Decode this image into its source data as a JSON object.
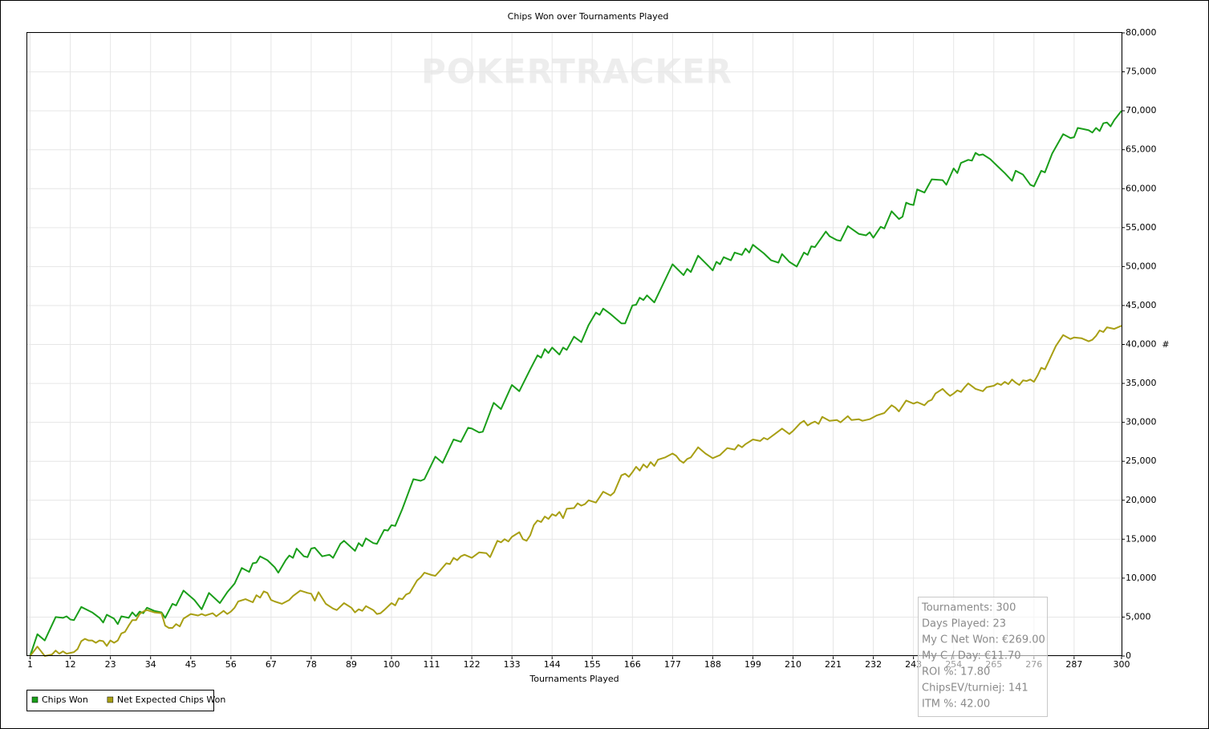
{
  "chart_data": {
    "type": "line",
    "title": "Chips Won over Tournaments Played",
    "watermark": "POKERTRACKER",
    "x_label": "Tournaments Played",
    "y_label": "#",
    "xlim": [
      0,
      300
    ],
    "ylim": [
      0,
      80000
    ],
    "xticks": [
      1,
      12,
      23,
      34,
      45,
      56,
      67,
      78,
      89,
      100,
      111,
      122,
      133,
      144,
      155,
      166,
      177,
      188,
      199,
      210,
      221,
      232,
      243,
      254,
      265,
      276,
      287,
      300
    ],
    "yticks": [
      0,
      {
        "value": 5000,
        "label": "5,000"
      },
      {
        "value": 10000,
        "label": "10,000"
      },
      {
        "value": 15000,
        "label": "15,000"
      },
      {
        "value": 20000,
        "label": "20,000"
      },
      {
        "value": 25000,
        "label": "25,000"
      },
      {
        "value": 30000,
        "label": "30,000"
      },
      {
        "value": 35000,
        "label": "35,000"
      },
      {
        "value": 40000,
        "label": "40,000"
      },
      {
        "value": 45000,
        "label": "45,000"
      },
      {
        "value": 50000,
        "label": "50,000"
      },
      {
        "value": 55000,
        "label": "55,000"
      },
      {
        "value": 60000,
        "label": "60,000"
      },
      {
        "value": 65000,
        "label": "65,000"
      },
      {
        "value": 70000,
        "label": "70,000"
      },
      {
        "value": 75000,
        "label": "75,000"
      },
      {
        "value": 80000,
        "label": "80,000"
      }
    ],
    "grid": true,
    "legend": "bottom-left",
    "series": [
      {
        "name": "Chips Won",
        "color": "#1a9e1a",
        "x": [
          1,
          3,
          5,
          8,
          10,
          11,
          12,
          13,
          15,
          18,
          20,
          21,
          22,
          24,
          25,
          26,
          28,
          29,
          30,
          31,
          32,
          33,
          35,
          37,
          38,
          40,
          41,
          43,
          46,
          48,
          50,
          53,
          55,
          57,
          59,
          61,
          62,
          63,
          64,
          66,
          68,
          69,
          71,
          72,
          73,
          74,
          76,
          77,
          78,
          79,
          81,
          83,
          84,
          86,
          87,
          90,
          91,
          92,
          93,
          95,
          96,
          98,
          99,
          100,
          101,
          103,
          106,
          108,
          109,
          112,
          114,
          117,
          119,
          121,
          122,
          124,
          125,
          128,
          130,
          133,
          135,
          138,
          140,
          141,
          142,
          143,
          144,
          146,
          147,
          148,
          150,
          152,
          154,
          156,
          157,
          158,
          160,
          163,
          164,
          166,
          167,
          168,
          169,
          170,
          172,
          177,
          180,
          181,
          182,
          184,
          187,
          188,
          189,
          190,
          191,
          192,
          193,
          194,
          196,
          197,
          198,
          199,
          202,
          204,
          206,
          207,
          209,
          211,
          213,
          214,
          215,
          216,
          219,
          220,
          222,
          223,
          225,
          228,
          230,
          231,
          232,
          234,
          235,
          237,
          239,
          240,
          241,
          242,
          243,
          244,
          246,
          248,
          251,
          252,
          254,
          255,
          256,
          258,
          259,
          260,
          261,
          262,
          264,
          266,
          268,
          270,
          271,
          273,
          275,
          276,
          278,
          279,
          281,
          284,
          286,
          287,
          288,
          290,
          291,
          292,
          293,
          294,
          295,
          296,
          297,
          298,
          300
        ],
        "values": [
          0,
          2800,
          2000,
          5000,
          4900,
          5100,
          4700,
          4600,
          6300,
          5600,
          4900,
          4300,
          5300,
          4800,
          4100,
          5100,
          4900,
          5600,
          5100,
          5700,
          5500,
          6200,
          5800,
          5600,
          4900,
          6700,
          6500,
          8400,
          7200,
          6000,
          8100,
          6800,
          8200,
          9300,
          11300,
          10800,
          11900,
          12000,
          12800,
          12300,
          11400,
          10700,
          12300,
          12900,
          12600,
          13800,
          12800,
          12700,
          13800,
          13900,
          12800,
          13000,
          12600,
          14400,
          14800,
          13500,
          14500,
          14100,
          15100,
          14500,
          14400,
          16200,
          16100,
          16800,
          16700,
          18900,
          22700,
          22500,
          22700,
          25600,
          24800,
          27800,
          27500,
          29300,
          29200,
          28700,
          28800,
          32500,
          31700,
          34800,
          34000,
          36800,
          38600,
          38300,
          39400,
          38900,
          39600,
          38700,
          39600,
          39300,
          41000,
          40300,
          42500,
          44100,
          43800,
          44600,
          43900,
          42700,
          42700,
          45000,
          45100,
          46000,
          45700,
          46300,
          45400,
          50300,
          48900,
          49700,
          49300,
          51400,
          50000,
          49500,
          50600,
          50300,
          51200,
          51000,
          50800,
          51800,
          51500,
          52300,
          51800,
          52800,
          51700,
          50800,
          50500,
          51600,
          50600,
          50000,
          51800,
          51500,
          52600,
          52500,
          54500,
          53900,
          53400,
          53300,
          55200,
          54200,
          54000,
          54400,
          53700,
          55100,
          54900,
          57100,
          56100,
          56400,
          58200,
          58000,
          57900,
          59900,
          59500,
          61200,
          61100,
          60500,
          62600,
          62000,
          63300,
          63700,
          63600,
          64600,
          64300,
          64400,
          63800,
          62900,
          62000,
          61000,
          62300,
          61800,
          60500,
          60300,
          62300,
          62100,
          64500,
          67000,
          66500,
          66600,
          67800,
          67600,
          67500,
          67200,
          67800,
          67400,
          68400,
          68500,
          68000,
          68800,
          70000
        ]
      },
      {
        "name": "Net Expected Chips Won",
        "color": "#a89f14",
        "x": [
          1,
          3,
          5,
          7,
          8,
          9,
          10,
          11,
          12,
          13,
          14,
          15,
          16,
          17,
          18,
          19,
          20,
          21,
          22,
          23,
          24,
          25,
          26,
          27,
          28,
          29,
          30,
          31,
          32,
          33,
          35,
          37,
          38,
          39,
          40,
          41,
          42,
          43,
          45,
          47,
          48,
          49,
          51,
          52,
          54,
          55,
          56,
          57,
          58,
          60,
          62,
          63,
          64,
          65,
          66,
          67,
          68,
          70,
          72,
          73,
          75,
          77,
          78,
          79,
          80,
          82,
          84,
          85,
          87,
          88,
          89,
          90,
          91,
          92,
          93,
          95,
          96,
          97,
          98,
          100,
          101,
          102,
          103,
          104,
          105,
          107,
          108,
          109,
          111,
          112,
          113,
          115,
          116,
          117,
          118,
          119,
          120,
          122,
          124,
          126,
          127,
          129,
          130,
          131,
          132,
          133,
          135,
          136,
          137,
          138,
          139,
          140,
          141,
          142,
          143,
          144,
          145,
          146,
          147,
          148,
          150,
          151,
          152,
          153,
          154,
          156,
          157,
          158,
          160,
          161,
          163,
          164,
          165,
          166,
          167,
          168,
          169,
          170,
          171,
          172,
          173,
          175,
          177,
          178,
          179,
          180,
          181,
          182,
          184,
          186,
          188,
          190,
          192,
          194,
          195,
          196,
          197,
          199,
          201,
          202,
          203,
          205,
          207,
          209,
          210,
          212,
          213,
          214,
          215,
          216,
          217,
          218,
          220,
          222,
          223,
          225,
          226,
          228,
          229,
          231,
          233,
          235,
          236,
          237,
          238,
          239,
          240,
          241,
          243,
          244,
          246,
          247,
          248,
          249,
          251,
          252,
          253,
          254,
          255,
          256,
          257,
          258,
          260,
          262,
          263,
          265,
          266,
          267,
          268,
          269,
          270,
          271,
          272,
          273,
          274,
          275,
          276,
          277,
          278,
          279,
          280,
          282,
          284,
          286,
          287,
          289,
          291,
          292,
          293,
          294,
          295,
          296,
          298,
          300
        ],
        "values": [
          0,
          1200,
          0,
          200,
          700,
          300,
          600,
          300,
          400,
          500,
          900,
          1900,
          2200,
          2000,
          2000,
          1700,
          2000,
          1900,
          1300,
          2000,
          1700,
          2000,
          2900,
          3100,
          3900,
          4600,
          4600,
          5400,
          5700,
          5900,
          5600,
          5500,
          3900,
          3600,
          3600,
          4100,
          3800,
          4800,
          5400,
          5200,
          5400,
          5200,
          5500,
          5100,
          5800,
          5400,
          5700,
          6200,
          7000,
          7300,
          6900,
          7800,
          7500,
          8300,
          8100,
          7200,
          7000,
          6700,
          7200,
          7700,
          8400,
          8100,
          8000,
          7100,
          8200,
          6700,
          6100,
          5900,
          6800,
          6500,
          6200,
          5600,
          6000,
          5800,
          6400,
          5900,
          5400,
          5500,
          5900,
          6800,
          6500,
          7400,
          7300,
          7900,
          8100,
          9700,
          10100,
          10700,
          10400,
          10300,
          10800,
          11900,
          11800,
          12600,
          12300,
          12800,
          13000,
          12600,
          13300,
          13200,
          12700,
          14800,
          14600,
          15000,
          14700,
          15300,
          15900,
          15000,
          14800,
          15500,
          16800,
          17400,
          17200,
          17900,
          17600,
          18200,
          18000,
          18500,
          17700,
          18900,
          19000,
          19600,
          19300,
          19500,
          20000,
          19700,
          20400,
          21100,
          20600,
          21000,
          23200,
          23400,
          23000,
          23600,
          24300,
          23800,
          24600,
          24200,
          24900,
          24400,
          25200,
          25500,
          26000,
          25700,
          25100,
          24800,
          25300,
          25500,
          26800,
          26000,
          25400,
          25800,
          26700,
          26500,
          27100,
          26800,
          27200,
          27800,
          27600,
          28000,
          27800,
          28500,
          29200,
          28500,
          28900,
          29900,
          30200,
          29600,
          29900,
          30100,
          29800,
          30700,
          30200,
          30300,
          30000,
          30800,
          30300,
          30400,
          30200,
          30400,
          30900,
          31200,
          31700,
          32200,
          31900,
          31400,
          32100,
          32800,
          32400,
          32600,
          32200,
          32700,
          32900,
          33700,
          34300,
          33800,
          33400,
          33700,
          34100,
          33900,
          34500,
          35000,
          34300,
          34000,
          34500,
          34700,
          35000,
          34800,
          35200,
          34900,
          35500,
          35100,
          34800,
          35400,
          35300,
          35500,
          35200,
          36000,
          37000,
          36800,
          37800,
          39800,
          41200,
          40700,
          40900,
          40800,
          40400,
          40600,
          41100,
          41800,
          41600,
          42200,
          42000,
          42400
        ]
      }
    ],
    "stats": [
      "Tournaments: 300",
      "Days Played: 23",
      "My C Net Won: €269.00",
      "My C / Day: €11.70",
      "ROI %: 17.80",
      "ChipsEV/turniej: 141",
      "ITM %: 42.00"
    ]
  }
}
